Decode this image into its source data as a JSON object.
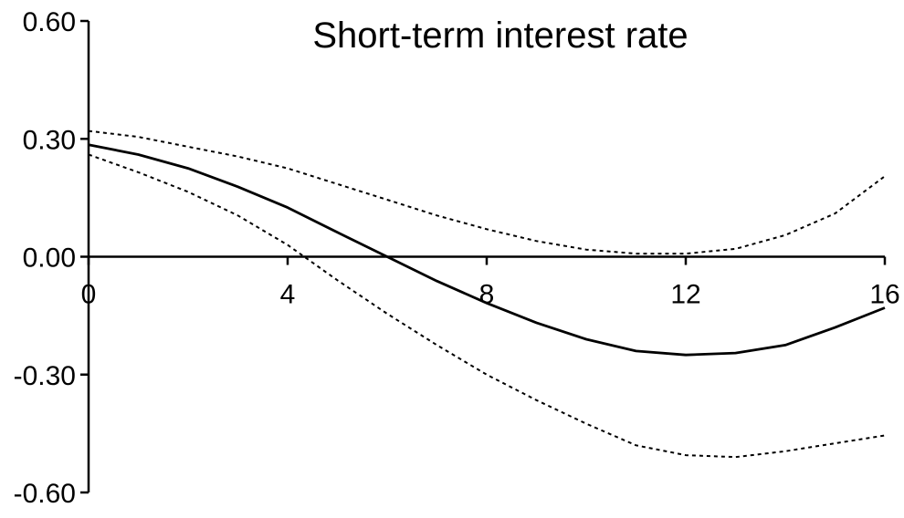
{
  "chart_data": {
    "type": "line",
    "title": "Short-term interest rate",
    "xlabel": "",
    "ylabel": "",
    "xlim": [
      0,
      16
    ],
    "ylim": [
      -0.6,
      0.6
    ],
    "x_ticks": [
      "0",
      "4",
      "8",
      "12",
      "16"
    ],
    "y_ticks": [
      "0.60",
      "0.30",
      "0.00",
      "-0.30",
      "-0.60"
    ],
    "grid": false,
    "series": [
      {
        "style": "solid",
        "x": [
          0,
          1,
          2,
          3,
          4,
          5,
          6,
          7,
          8,
          9,
          10,
          11,
          12,
          13,
          14,
          15,
          16
        ],
        "values": [
          0.285,
          0.26,
          0.225,
          0.178,
          0.125,
          0.062,
          0.0,
          -0.062,
          -0.118,
          -0.168,
          -0.21,
          -0.24,
          -0.25,
          -0.245,
          -0.225,
          -0.18,
          -0.13
        ]
      },
      {
        "style": "dotted",
        "x": [
          0,
          1,
          2,
          3,
          4,
          5,
          6,
          7,
          8,
          9,
          10,
          11,
          12,
          13,
          14,
          15,
          16
        ],
        "values": [
          0.32,
          0.305,
          0.28,
          0.255,
          0.225,
          0.185,
          0.145,
          0.105,
          0.07,
          0.04,
          0.018,
          0.008,
          0.008,
          0.02,
          0.055,
          0.11,
          0.205
        ]
      },
      {
        "style": "dotted",
        "x": [
          0,
          1,
          2,
          3,
          4,
          5,
          6,
          7,
          8,
          9,
          10,
          11,
          12,
          13,
          14,
          15,
          16
        ],
        "values": [
          0.26,
          0.215,
          0.165,
          0.105,
          0.03,
          -0.06,
          -0.145,
          -0.225,
          -0.3,
          -0.365,
          -0.425,
          -0.48,
          -0.505,
          -0.51,
          -0.495,
          -0.475,
          -0.455
        ]
      }
    ]
  }
}
